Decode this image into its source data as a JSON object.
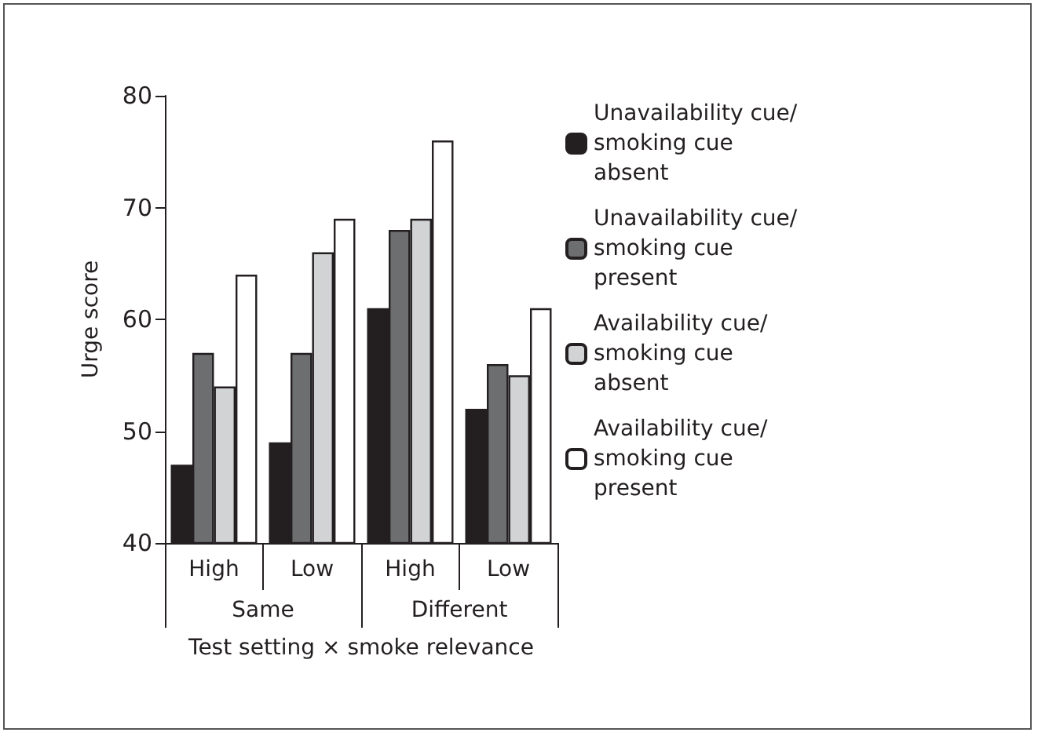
{
  "chart_data": {
    "type": "bar",
    "xlabel": "Test setting × smoke relevance",
    "ylabel": "Urge score",
    "categories": [
      "High",
      "Low",
      "High",
      "Low"
    ],
    "annotations": [
      "Same",
      "Different"
    ],
    "series": [
      {
        "name": "Unavailability cue/ smoking cue absent",
        "color": "#231f20",
        "values": [
          47,
          49,
          61,
          52
        ]
      },
      {
        "name": "Unavailability cue/ smoking cue present",
        "color": "#6d6e70",
        "values": [
          57,
          57,
          68,
          56
        ]
      },
      {
        "name": "Availability cue/ smoking cue absent",
        "color": "#d1d3d4",
        "values": [
          54,
          66,
          69,
          55
        ]
      },
      {
        "name": "Availability cue/ smoking cue present",
        "color": "#ffffff",
        "values": [
          64,
          69,
          76,
          61
        ]
      }
    ],
    "ylim": [
      40,
      80
    ],
    "yticks": [
      40,
      50,
      60,
      70,
      80
    ],
    "grid": false,
    "legend": "top right"
  }
}
